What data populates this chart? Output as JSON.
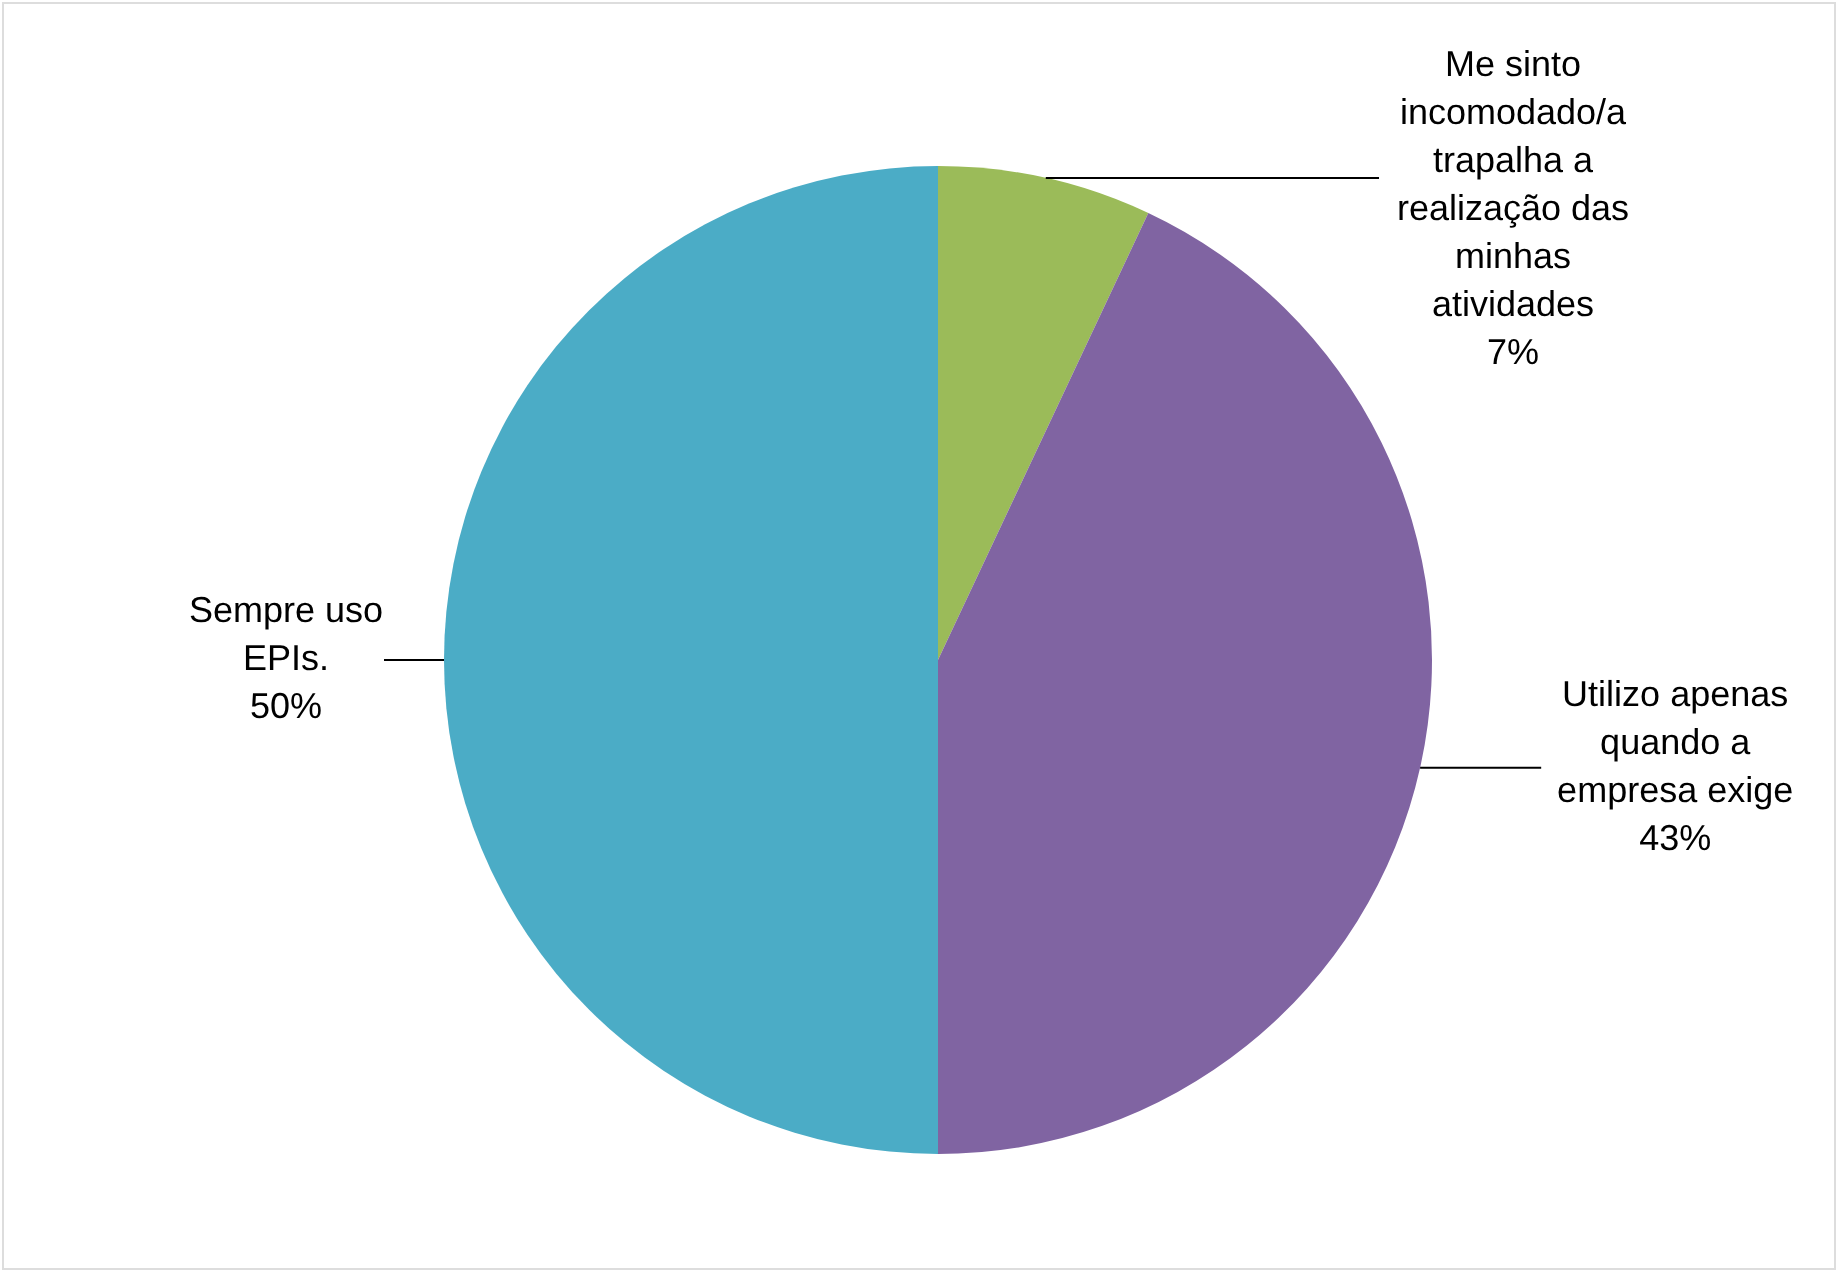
{
  "chart_data": {
    "type": "pie",
    "categories": [
      "Me sinto incomodado/a trapalha a realização das minhas atividades",
      "Utilizo apenas quando a empresa exige",
      "Sempre uso EPIs."
    ],
    "values": [
      7,
      43,
      50
    ],
    "colors": [
      "#9bbb59",
      "#8064a2",
      "#4bacc6"
    ],
    "value_labels": [
      "7%",
      "43%",
      "50%"
    ]
  }
}
